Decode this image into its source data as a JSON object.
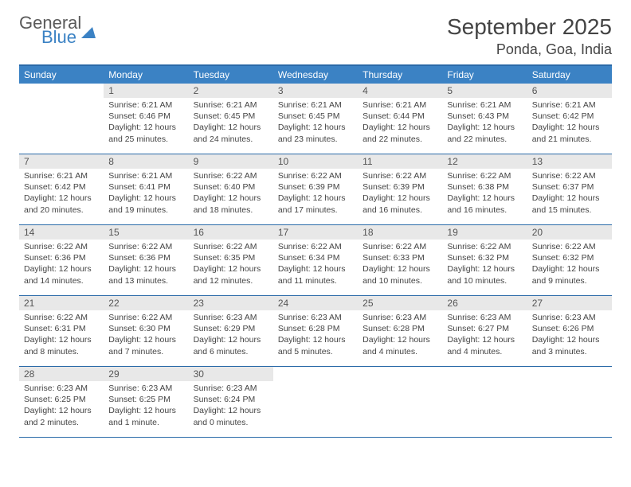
{
  "logo": {
    "general": "General",
    "blue": "Blue"
  },
  "title": "September 2025",
  "location": "Ponda, Goa, India",
  "dayHeaders": [
    "Sunday",
    "Monday",
    "Tuesday",
    "Wednesday",
    "Thursday",
    "Friday",
    "Saturday"
  ],
  "colors": {
    "header_bg": "#3b82c4",
    "border": "#2a6aa8",
    "daynum_bg": "#e8e8e8",
    "text": "#444444"
  },
  "weeks": [
    [
      {
        "n": "",
        "sr": "",
        "ss": "",
        "dl": ""
      },
      {
        "n": "1",
        "sr": "Sunrise: 6:21 AM",
        "ss": "Sunset: 6:46 PM",
        "dl": "Daylight: 12 hours and 25 minutes."
      },
      {
        "n": "2",
        "sr": "Sunrise: 6:21 AM",
        "ss": "Sunset: 6:45 PM",
        "dl": "Daylight: 12 hours and 24 minutes."
      },
      {
        "n": "3",
        "sr": "Sunrise: 6:21 AM",
        "ss": "Sunset: 6:45 PM",
        "dl": "Daylight: 12 hours and 23 minutes."
      },
      {
        "n": "4",
        "sr": "Sunrise: 6:21 AM",
        "ss": "Sunset: 6:44 PM",
        "dl": "Daylight: 12 hours and 22 minutes."
      },
      {
        "n": "5",
        "sr": "Sunrise: 6:21 AM",
        "ss": "Sunset: 6:43 PM",
        "dl": "Daylight: 12 hours and 22 minutes."
      },
      {
        "n": "6",
        "sr": "Sunrise: 6:21 AM",
        "ss": "Sunset: 6:42 PM",
        "dl": "Daylight: 12 hours and 21 minutes."
      }
    ],
    [
      {
        "n": "7",
        "sr": "Sunrise: 6:21 AM",
        "ss": "Sunset: 6:42 PM",
        "dl": "Daylight: 12 hours and 20 minutes."
      },
      {
        "n": "8",
        "sr": "Sunrise: 6:21 AM",
        "ss": "Sunset: 6:41 PM",
        "dl": "Daylight: 12 hours and 19 minutes."
      },
      {
        "n": "9",
        "sr": "Sunrise: 6:22 AM",
        "ss": "Sunset: 6:40 PM",
        "dl": "Daylight: 12 hours and 18 minutes."
      },
      {
        "n": "10",
        "sr": "Sunrise: 6:22 AM",
        "ss": "Sunset: 6:39 PM",
        "dl": "Daylight: 12 hours and 17 minutes."
      },
      {
        "n": "11",
        "sr": "Sunrise: 6:22 AM",
        "ss": "Sunset: 6:39 PM",
        "dl": "Daylight: 12 hours and 16 minutes."
      },
      {
        "n": "12",
        "sr": "Sunrise: 6:22 AM",
        "ss": "Sunset: 6:38 PM",
        "dl": "Daylight: 12 hours and 16 minutes."
      },
      {
        "n": "13",
        "sr": "Sunrise: 6:22 AM",
        "ss": "Sunset: 6:37 PM",
        "dl": "Daylight: 12 hours and 15 minutes."
      }
    ],
    [
      {
        "n": "14",
        "sr": "Sunrise: 6:22 AM",
        "ss": "Sunset: 6:36 PM",
        "dl": "Daylight: 12 hours and 14 minutes."
      },
      {
        "n": "15",
        "sr": "Sunrise: 6:22 AM",
        "ss": "Sunset: 6:36 PM",
        "dl": "Daylight: 12 hours and 13 minutes."
      },
      {
        "n": "16",
        "sr": "Sunrise: 6:22 AM",
        "ss": "Sunset: 6:35 PM",
        "dl": "Daylight: 12 hours and 12 minutes."
      },
      {
        "n": "17",
        "sr": "Sunrise: 6:22 AM",
        "ss": "Sunset: 6:34 PM",
        "dl": "Daylight: 12 hours and 11 minutes."
      },
      {
        "n": "18",
        "sr": "Sunrise: 6:22 AM",
        "ss": "Sunset: 6:33 PM",
        "dl": "Daylight: 12 hours and 10 minutes."
      },
      {
        "n": "19",
        "sr": "Sunrise: 6:22 AM",
        "ss": "Sunset: 6:32 PM",
        "dl": "Daylight: 12 hours and 10 minutes."
      },
      {
        "n": "20",
        "sr": "Sunrise: 6:22 AM",
        "ss": "Sunset: 6:32 PM",
        "dl": "Daylight: 12 hours and 9 minutes."
      }
    ],
    [
      {
        "n": "21",
        "sr": "Sunrise: 6:22 AM",
        "ss": "Sunset: 6:31 PM",
        "dl": "Daylight: 12 hours and 8 minutes."
      },
      {
        "n": "22",
        "sr": "Sunrise: 6:22 AM",
        "ss": "Sunset: 6:30 PM",
        "dl": "Daylight: 12 hours and 7 minutes."
      },
      {
        "n": "23",
        "sr": "Sunrise: 6:23 AM",
        "ss": "Sunset: 6:29 PM",
        "dl": "Daylight: 12 hours and 6 minutes."
      },
      {
        "n": "24",
        "sr": "Sunrise: 6:23 AM",
        "ss": "Sunset: 6:28 PM",
        "dl": "Daylight: 12 hours and 5 minutes."
      },
      {
        "n": "25",
        "sr": "Sunrise: 6:23 AM",
        "ss": "Sunset: 6:28 PM",
        "dl": "Daylight: 12 hours and 4 minutes."
      },
      {
        "n": "26",
        "sr": "Sunrise: 6:23 AM",
        "ss": "Sunset: 6:27 PM",
        "dl": "Daylight: 12 hours and 4 minutes."
      },
      {
        "n": "27",
        "sr": "Sunrise: 6:23 AM",
        "ss": "Sunset: 6:26 PM",
        "dl": "Daylight: 12 hours and 3 minutes."
      }
    ],
    [
      {
        "n": "28",
        "sr": "Sunrise: 6:23 AM",
        "ss": "Sunset: 6:25 PM",
        "dl": "Daylight: 12 hours and 2 minutes."
      },
      {
        "n": "29",
        "sr": "Sunrise: 6:23 AM",
        "ss": "Sunset: 6:25 PM",
        "dl": "Daylight: 12 hours and 1 minute."
      },
      {
        "n": "30",
        "sr": "Sunrise: 6:23 AM",
        "ss": "Sunset: 6:24 PM",
        "dl": "Daylight: 12 hours and 0 minutes."
      },
      {
        "n": "",
        "sr": "",
        "ss": "",
        "dl": ""
      },
      {
        "n": "",
        "sr": "",
        "ss": "",
        "dl": ""
      },
      {
        "n": "",
        "sr": "",
        "ss": "",
        "dl": ""
      },
      {
        "n": "",
        "sr": "",
        "ss": "",
        "dl": ""
      }
    ]
  ]
}
